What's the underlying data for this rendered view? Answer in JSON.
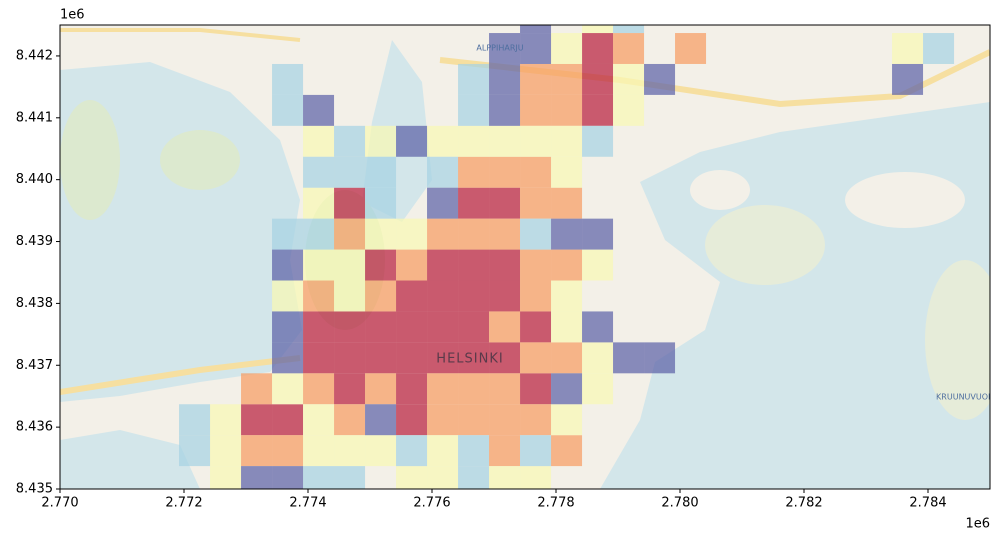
{
  "chart_data": {
    "type": "grid-map",
    "offset_x": "1e6",
    "offset_y": "1e6",
    "xlim": [
      2770000,
      2785000
    ],
    "ylim": [
      8435000,
      8442500
    ],
    "xticks": [
      {
        "value": 2770000,
        "label": "2.770"
      },
      {
        "value": 2772000,
        "label": "2.772"
      },
      {
        "value": 2774000,
        "label": "2.774"
      },
      {
        "value": 2776000,
        "label": "2.776"
      },
      {
        "value": 2778000,
        "label": "2.778"
      },
      {
        "value": 2780000,
        "label": "2.780"
      },
      {
        "value": 2782000,
        "label": "2.782"
      },
      {
        "value": 2784000,
        "label": "2.784"
      }
    ],
    "yticks": [
      {
        "value": 8435000,
        "label": "8.435"
      },
      {
        "value": 8436000,
        "label": "8.436"
      },
      {
        "value": 8437000,
        "label": "8.437"
      },
      {
        "value": 8438000,
        "label": "8.438"
      },
      {
        "value": 8439000,
        "label": "8.439"
      },
      {
        "value": 8440000,
        "label": "8.440"
      },
      {
        "value": 8441000,
        "label": "8.441"
      },
      {
        "value": 8442000,
        "label": "8.442"
      }
    ],
    "map_labels": [
      "HELSINKI",
      "ALPPIHARJU",
      "KRUUNUVUORI"
    ],
    "layers": [
      {
        "color": "#b8203f",
        "x": [
          2778420,
          2778420,
          2778420,
          2774420,
          2776420,
          2776920,
          2774920,
          2775920,
          2776420,
          2776920,
          2775420,
          2775920,
          2776420,
          2776920,
          2773920,
          2774420,
          2774920,
          2775420,
          2775920,
          2776420,
          2777420,
          2773920,
          2774420,
          2774920,
          2775420,
          2775920,
          2776420,
          2776920,
          2774420,
          2775420,
          2777420,
          2772920,
          2773420,
          2775420
        ],
        "y": [
          8441870,
          8441370,
          8440870,
          8439370,
          8439370,
          8439370,
          8438370,
          8438370,
          8438370,
          8438370,
          8437870,
          8437870,
          8437870,
          8437870,
          8437370,
          8437370,
          8437370,
          8437370,
          8437370,
          8437370,
          8437370,
          8436870,
          8436870,
          8436870,
          8436870,
          8436870,
          8436870,
          8436870,
          8436370,
          8436370,
          8436370,
          8435870,
          8435870,
          8435870
        ]
      },
      {
        "color": "#f79c62",
        "x": [
          2778920,
          2779920,
          2777420,
          2777920,
          2777420,
          2777920,
          2776420,
          2776920,
          2777420,
          2777420,
          2777920,
          2774420,
          2775920,
          2776420,
          2776920,
          2775420,
          2777420,
          2777920,
          2773920,
          2774920,
          2777420,
          2776920,
          2777420,
          2777920,
          2772920,
          2773920,
          2774920,
          2775920,
          2776420,
          2776920,
          2774420,
          2775920,
          2776420,
          2776920,
          2777420,
          2772920,
          2773420,
          2776920,
          2777920
        ],
        "y": [
          8441870,
          8441870,
          8441370,
          8441370,
          8440870,
          8440870,
          8439870,
          8439870,
          8439870,
          8439370,
          8439370,
          8438870,
          8438870,
          8438870,
          8438870,
          8438370,
          8438370,
          8438370,
          8437870,
          8437870,
          8437870,
          8437370,
          8436870,
          8436870,
          8436370,
          8436370,
          8436370,
          8436370,
          8436370,
          8436370,
          8435870,
          8435870,
          8435870,
          8435870,
          8435870,
          8435370,
          8435370,
          8435370,
          8435370
        ]
      },
      {
        "color": "#f8f8b4",
        "x": [
          2778420,
          2777920,
          2783420,
          2778920,
          2778920,
          2773920,
          2774920,
          2775920,
          2776420,
          2776920,
          2777420,
          2777920,
          2777920,
          2773920,
          2774920,
          2775420,
          2773920,
          2774420,
          2778420,
          2773420,
          2774420,
          2777920,
          2777920,
          2778420,
          2773420,
          2778420,
          2772420,
          2773920,
          2777920,
          2772420,
          2773920,
          2774420,
          2774920,
          2775920,
          2772420,
          2775420,
          2775920,
          2776920,
          2777420
        ],
        "y": [
          8442370,
          8441870,
          8441870,
          8441370,
          8440870,
          8440370,
          8440370,
          8440370,
          8440370,
          8440370,
          8440370,
          8440370,
          8439870,
          8439370,
          8438870,
          8438870,
          8438370,
          8438370,
          8438370,
          8437870,
          8437870,
          8437870,
          8437370,
          8436870,
          8436370,
          8436370,
          8435870,
          8435870,
          8435870,
          8435370,
          8435370,
          8435370,
          8435370,
          8435370,
          8434870,
          8434870,
          8434870,
          8434870,
          8434870
        ]
      },
      {
        "color": "#a6d2e3",
        "x": [
          2778920,
          2783920,
          2773420,
          2776420,
          2773420,
          2776420,
          2774420,
          2778420,
          2773920,
          2774420,
          2774920,
          2775920,
          2774920,
          2773420,
          2773920,
          2777420,
          2771920,
          2771920,
          2775420,
          2776420,
          2777420,
          2773920,
          2774420,
          2776420
        ],
        "y": [
          8442370,
          8441870,
          8441370,
          8441370,
          8440870,
          8440870,
          8440370,
          8440370,
          8439870,
          8439870,
          8439870,
          8439870,
          8439370,
          8438870,
          8438870,
          8438870,
          8435870,
          8435370,
          8435370,
          8435370,
          8435370,
          8434870,
          8434870,
          8434870
        ]
      },
      {
        "color": "#5d62a8",
        "x": [
          2777420,
          2776920,
          2777420,
          2776920,
          2779420,
          2783420,
          2773920,
          2776920,
          2775420,
          2775920,
          2777920,
          2778420,
          2773420,
          2773420,
          2778420,
          2773420,
          2778920,
          2779420,
          2777920,
          2774920,
          2772920,
          2773420
        ],
        "y": [
          8442370,
          8441870,
          8441870,
          8441370,
          8441370,
          8441370,
          8440870,
          8440870,
          8440370,
          8439370,
          8438870,
          8438870,
          8438370,
          8437370,
          8437370,
          8436870,
          8436870,
          8436870,
          8436370,
          8435870,
          8434870,
          8434870
        ]
      }
    ]
  }
}
